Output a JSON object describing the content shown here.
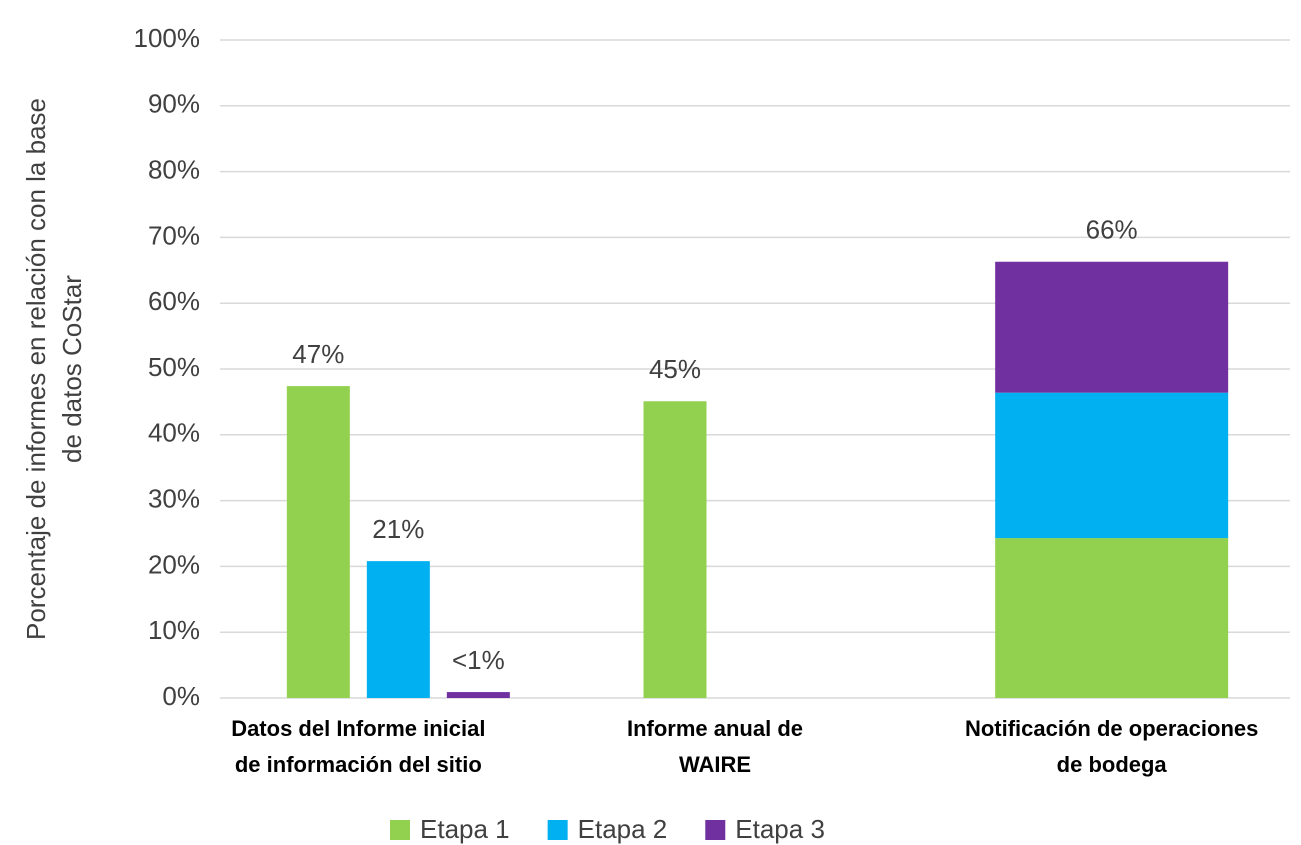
{
  "chart_data": {
    "type": "bar",
    "ylabel": [
      "Porcentaje de informes en relación con la base",
      "de datos CoStar"
    ],
    "categories": [
      [
        "Datos del Informe inicial",
        "de información del sitio"
      ],
      [
        "Informe anual de",
        "WAIRE"
      ],
      [
        "Notificación de operaciones",
        "de bodega"
      ]
    ],
    "category_layout": [
      "grouped",
      "grouped",
      "stacked"
    ],
    "series": [
      {
        "name": "Etapa 1",
        "color": "#92d050",
        "values": [
          47.4,
          45.1,
          24.3
        ],
        "value_labels": [
          "47%",
          "45%",
          null
        ]
      },
      {
        "name": "Etapa 2",
        "color": "#00b0f0",
        "values": [
          20.8,
          null,
          22.1
        ],
        "value_labels": [
          "21%",
          null,
          null
        ]
      },
      {
        "name": "Etapa 3",
        "color": "#7030a0",
        "values": [
          0.9,
          null,
          19.9
        ],
        "value_labels": [
          "<1%",
          null,
          null
        ]
      }
    ],
    "totals": [
      null,
      null,
      66.3
    ],
    "total_labels": [
      null,
      null,
      "66%"
    ],
    "ylim": [
      0,
      100
    ],
    "yticks": [
      {
        "value": 0,
        "label": "0%"
      },
      {
        "value": 10,
        "label": "10%"
      },
      {
        "value": 20,
        "label": "20%"
      },
      {
        "value": 30,
        "label": "30%"
      },
      {
        "value": 40,
        "label": "40%"
      },
      {
        "value": 50,
        "label": "50%"
      },
      {
        "value": 60,
        "label": "60%"
      },
      {
        "value": 70,
        "label": "70%"
      },
      {
        "value": 80,
        "label": "80%"
      },
      {
        "value": 90,
        "label": "90%"
      },
      {
        "value": 100,
        "label": "100%"
      }
    ],
    "grid": true,
    "legend": "bottom"
  }
}
